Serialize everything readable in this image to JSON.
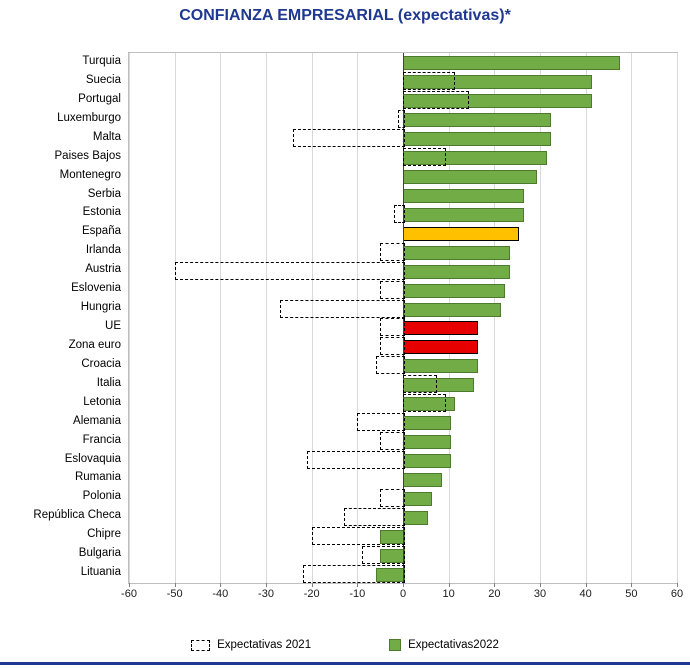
{
  "title": "CONFIANZA EMPRESARIAL (expectativas)*",
  "colors": {
    "title": "#1F3890",
    "bottom_rule": "#1F3890",
    "bar_default": "#71AC47",
    "bar_default_border": "#4E7A2E",
    "bar_es": "#FFC000",
    "bar_eu": "#E60000",
    "bar_highlight_border": "#000000",
    "bar_2021_border": "#000000",
    "gridline": "#D9D9D9",
    "axis_line": "#404040"
  },
  "legend": [
    {
      "label": "Expectativas 2021",
      "swatch": "dashed"
    },
    {
      "label": "Expectativas2022",
      "swatch": "solid"
    }
  ],
  "chart_data": {
    "type": "bar",
    "orientation": "horizontal",
    "title": "CONFIANZA EMPRESARIAL (expectativas)*",
    "xlabel": "",
    "ylabel": "",
    "xlim": [
      -60,
      60
    ],
    "xticks": [
      -60,
      -50,
      -40,
      -30,
      -20,
      -10,
      0,
      10,
      20,
      30,
      40,
      50,
      60
    ],
    "grid": true,
    "legend_position": "bottom",
    "categories": [
      "Turquia",
      "Suecia",
      "Portugal",
      "Luxemburgo",
      "Malta",
      "Paises Bajos",
      "Montenegro",
      "Serbia",
      "Estonia",
      "España",
      "Irlanda",
      "Austria",
      "Eslovenia",
      "Hungria",
      "UE",
      "Zona euro",
      "Croacia",
      "Italia",
      "Letonia",
      "Alemania",
      "Francia",
      "Eslovaquia",
      "Rumania",
      "Polonia",
      "República Checa",
      "Chipre",
      "Bulgaria",
      "Lituania"
    ],
    "series": [
      {
        "name": "Expectativas 2021",
        "values": [
          0,
          11,
          14,
          -1,
          -24,
          9,
          0,
          0,
          -2,
          0,
          -5,
          -50,
          -5,
          -27,
          -5,
          -5,
          -6,
          7,
          9,
          -10,
          -5,
          -21,
          0,
          -5,
          -13,
          -20,
          -9,
          -22
        ]
      },
      {
        "name": "Expectativas2022",
        "values": [
          47,
          41,
          41,
          32,
          32,
          31,
          29,
          26,
          26,
          25,
          23,
          23,
          22,
          21,
          16,
          16,
          16,
          15,
          11,
          10,
          10,
          10,
          8,
          6,
          5,
          -5,
          -5,
          -6
        ]
      }
    ],
    "highlight": {
      "España": "es",
      "UE": "eu",
      "Zona euro": "eu"
    }
  }
}
